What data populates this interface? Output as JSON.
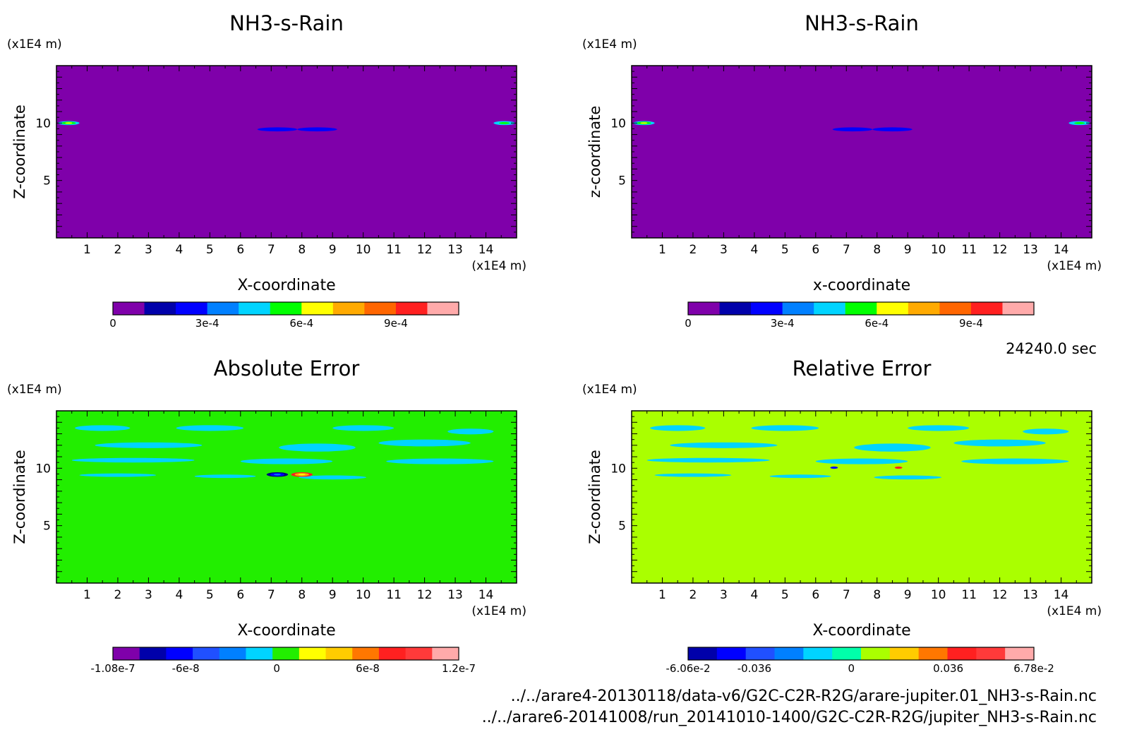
{
  "figure": {
    "time_label": "24240.0 sec",
    "files": [
      "../../arare4-20130118/data-v6/G2C-C2R-R2G/arare-jupiter.01_NH3-s-Rain.nc",
      "../../arare6-20141008/run_20141010-1400/G2C-C2R-R2G/jupiter_NH3-s-Rain.nc"
    ]
  },
  "chart_data": [
    {
      "type": "heatmap",
      "title": "NH3-s-Rain",
      "xlabel": "X-coordinate",
      "ylabel": "Z-coordinate",
      "x_unit": "(x1E4 m)",
      "y_unit": "(x1E4 m)",
      "xlim": [
        0,
        15
      ],
      "ylim": [
        0,
        15
      ],
      "x_ticks": [
        "1",
        "2",
        "3",
        "4",
        "5",
        "6",
        "7",
        "8",
        "9",
        "10",
        "11",
        "12",
        "13",
        "14"
      ],
      "y_ticks": [
        "5",
        "10"
      ],
      "background_color": "#7f00aa",
      "features": [
        {
          "x": 0.4,
          "z": 10.0,
          "width": 0.7,
          "height": 0.35,
          "colors": [
            "#ffff00",
            "#00ff00",
            "#00d4ff"
          ]
        },
        {
          "x": 14.6,
          "z": 10.0,
          "width": 0.7,
          "height": 0.35,
          "colors": [
            "#00ff00",
            "#00d4ff"
          ]
        },
        {
          "x": 7.2,
          "z": 9.45,
          "width": 1.3,
          "height": 0.35,
          "colors": [
            "#0000ff"
          ]
        },
        {
          "x": 8.5,
          "z": 9.45,
          "width": 1.3,
          "height": 0.35,
          "colors": [
            "#0000ff"
          ]
        }
      ],
      "colorbar": {
        "colors": [
          "#7f00aa",
          "#0000aa",
          "#0000ff",
          "#0080ff",
          "#00d4ff",
          "#00ff00",
          "#ffff00",
          "#ffaa00",
          "#ff6600",
          "#ff2020",
          "#ffaaaa"
        ],
        "tick_labels": [
          {
            "label": "0",
            "value": 0
          },
          {
            "label": "3e-4",
            "value": 0.0003
          },
          {
            "label": "6e-4",
            "value": 0.0006
          },
          {
            "label": "9e-4",
            "value": 0.0009
          }
        ],
        "range": [
          0,
          0.0011
        ]
      }
    },
    {
      "type": "heatmap",
      "title": "NH3-s-Rain",
      "xlabel": "x-coordinate",
      "ylabel": "z-coordinate",
      "x_unit": "(x1E4 m)",
      "y_unit": "(x1E4 m)",
      "xlim": [
        0,
        15
      ],
      "ylim": [
        0,
        15
      ],
      "x_ticks": [
        "1",
        "2",
        "3",
        "4",
        "5",
        "6",
        "7",
        "8",
        "9",
        "10",
        "11",
        "12",
        "13",
        "14"
      ],
      "y_ticks": [
        "5",
        "10"
      ],
      "background_color": "#7f00aa",
      "features": [
        {
          "x": 0.4,
          "z": 10.0,
          "width": 0.7,
          "height": 0.35,
          "colors": [
            "#ffff00",
            "#00ff00",
            "#00d4ff"
          ]
        },
        {
          "x": 14.6,
          "z": 10.0,
          "width": 0.7,
          "height": 0.35,
          "colors": [
            "#00ff00",
            "#00d4ff"
          ]
        },
        {
          "x": 7.2,
          "z": 9.45,
          "width": 1.3,
          "height": 0.35,
          "colors": [
            "#0000ff"
          ]
        },
        {
          "x": 8.5,
          "z": 9.45,
          "width": 1.3,
          "height": 0.35,
          "colors": [
            "#0000ff"
          ]
        }
      ],
      "colorbar": {
        "colors": [
          "#7f00aa",
          "#0000aa",
          "#0000ff",
          "#0080ff",
          "#00d4ff",
          "#00ff00",
          "#ffff00",
          "#ffaa00",
          "#ff6600",
          "#ff2020",
          "#ffaaaa"
        ],
        "tick_labels": [
          {
            "label": "0",
            "value": 0
          },
          {
            "label": "3e-4",
            "value": 0.0003
          },
          {
            "label": "6e-4",
            "value": 0.0006
          },
          {
            "label": "9e-4",
            "value": 0.0009
          }
        ],
        "range": [
          0,
          0.0011
        ]
      }
    },
    {
      "type": "heatmap",
      "title": "Absolute Error",
      "xlabel": "X-coordinate",
      "ylabel": "Z-coordinate",
      "x_unit": "(x1E4 m)",
      "y_unit": "(x1E4 m)",
      "xlim": [
        0,
        15
      ],
      "ylim": [
        0,
        15
      ],
      "x_ticks": [
        "1",
        "2",
        "3",
        "4",
        "5",
        "6",
        "7",
        "8",
        "9",
        "10",
        "11",
        "12",
        "13",
        "14"
      ],
      "y_ticks": [
        "5",
        "10"
      ],
      "background_color": "#22ee00",
      "features": [
        {
          "x": 1.5,
          "z": 13.5,
          "width": 1.8,
          "height": 0.5,
          "colors": [
            "#00d4ff"
          ]
        },
        {
          "x": 5.0,
          "z": 13.5,
          "width": 2.2,
          "height": 0.5,
          "colors": [
            "#00d4ff"
          ]
        },
        {
          "x": 10.0,
          "z": 13.5,
          "width": 2.0,
          "height": 0.5,
          "colors": [
            "#00d4ff"
          ]
        },
        {
          "x": 13.5,
          "z": 13.2,
          "width": 1.5,
          "height": 0.5,
          "colors": [
            "#00d4ff"
          ]
        },
        {
          "x": 3.0,
          "z": 12.0,
          "width": 3.5,
          "height": 0.5,
          "colors": [
            "#00d4ff"
          ]
        },
        {
          "x": 8.5,
          "z": 11.8,
          "width": 2.5,
          "height": 0.7,
          "colors": [
            "#00d4ff"
          ]
        },
        {
          "x": 12.0,
          "z": 12.2,
          "width": 3.0,
          "height": 0.6,
          "colors": [
            "#00d4ff"
          ]
        },
        {
          "x": 2.5,
          "z": 10.7,
          "width": 4.0,
          "height": 0.4,
          "colors": [
            "#00d4ff"
          ]
        },
        {
          "x": 7.5,
          "z": 10.6,
          "width": 3.0,
          "height": 0.5,
          "colors": [
            "#00d4ff"
          ]
        },
        {
          "x": 12.5,
          "z": 10.6,
          "width": 3.5,
          "height": 0.5,
          "colors": [
            "#00d4ff"
          ]
        },
        {
          "x": 2.0,
          "z": 9.4,
          "width": 2.5,
          "height": 0.3,
          "colors": [
            "#00d4ff"
          ]
        },
        {
          "x": 5.5,
          "z": 9.3,
          "width": 2.0,
          "height": 0.3,
          "colors": [
            "#00d4ff"
          ]
        },
        {
          "x": 9.0,
          "z": 9.2,
          "width": 2.2,
          "height": 0.35,
          "colors": [
            "#00d4ff"
          ]
        },
        {
          "x": 7.2,
          "z": 9.45,
          "width": 0.7,
          "height": 0.4,
          "colors": [
            "#0080ff",
            "#0000ff",
            "#000080"
          ]
        },
        {
          "x": 8.0,
          "z": 9.45,
          "width": 0.7,
          "height": 0.4,
          "colors": [
            "#ffff00",
            "#ffaa00",
            "#ff2020"
          ]
        }
      ],
      "colorbar": {
        "colors": [
          "#7f00aa",
          "#0000aa",
          "#0000ff",
          "#2050ff",
          "#0080ff",
          "#00d4ff",
          "#22ee00",
          "#ffff00",
          "#ffcc00",
          "#ff7700",
          "#ff2020",
          "#ff3a3a",
          "#ffaaaa"
        ],
        "tick_labels": [
          {
            "label": "-1.08e-7",
            "value": -1.08e-07
          },
          {
            "label": "-6e-8",
            "value": -6e-08
          },
          {
            "label": "0",
            "value": 0
          },
          {
            "label": "6e-8",
            "value": 6e-08
          },
          {
            "label": "1.2e-7",
            "value": 1.2e-07
          }
        ],
        "range": [
          -1.08e-07,
          1.2e-07
        ]
      }
    },
    {
      "type": "heatmap",
      "title": "Relative Error",
      "xlabel": "X-coordinate",
      "ylabel": "Z-coordinate",
      "x_unit": "(x1E4 m)",
      "y_unit": "(x1E4 m)",
      "xlim": [
        0,
        15
      ],
      "ylim": [
        0,
        15
      ],
      "x_ticks": [
        "1",
        "2",
        "3",
        "4",
        "5",
        "6",
        "7",
        "8",
        "9",
        "10",
        "11",
        "12",
        "13",
        "14"
      ],
      "y_ticks": [
        "5",
        "10"
      ],
      "background_color": "#aaff00",
      "features": [
        {
          "x": 1.5,
          "z": 13.5,
          "width": 1.8,
          "height": 0.5,
          "colors": [
            "#00d4ff"
          ]
        },
        {
          "x": 5.0,
          "z": 13.5,
          "width": 2.2,
          "height": 0.5,
          "colors": [
            "#00d4ff"
          ]
        },
        {
          "x": 10.0,
          "z": 13.5,
          "width": 2.0,
          "height": 0.5,
          "colors": [
            "#00d4ff"
          ]
        },
        {
          "x": 13.5,
          "z": 13.2,
          "width": 1.5,
          "height": 0.5,
          "colors": [
            "#00d4ff"
          ]
        },
        {
          "x": 3.0,
          "z": 12.0,
          "width": 3.5,
          "height": 0.5,
          "colors": [
            "#00d4ff"
          ]
        },
        {
          "x": 8.5,
          "z": 11.8,
          "width": 2.5,
          "height": 0.7,
          "colors": [
            "#00d4ff"
          ]
        },
        {
          "x": 12.0,
          "z": 12.2,
          "width": 3.0,
          "height": 0.6,
          "colors": [
            "#00d4ff"
          ]
        },
        {
          "x": 2.5,
          "z": 10.7,
          "width": 4.0,
          "height": 0.4,
          "colors": [
            "#00d4ff"
          ]
        },
        {
          "x": 7.5,
          "z": 10.6,
          "width": 3.0,
          "height": 0.5,
          "colors": [
            "#00d4ff"
          ]
        },
        {
          "x": 12.5,
          "z": 10.6,
          "width": 3.5,
          "height": 0.5,
          "colors": [
            "#00d4ff"
          ]
        },
        {
          "x": 2.0,
          "z": 9.4,
          "width": 2.5,
          "height": 0.3,
          "colors": [
            "#00d4ff"
          ]
        },
        {
          "x": 5.5,
          "z": 9.3,
          "width": 2.0,
          "height": 0.3,
          "colors": [
            "#00d4ff"
          ]
        },
        {
          "x": 9.0,
          "z": 9.2,
          "width": 2.2,
          "height": 0.35,
          "colors": [
            "#00d4ff"
          ]
        },
        {
          "x": 6.6,
          "z": 10.05,
          "width": 0.25,
          "height": 0.2,
          "colors": [
            "#0000ff"
          ]
        },
        {
          "x": 8.7,
          "z": 10.05,
          "width": 0.25,
          "height": 0.2,
          "colors": [
            "#ff2020"
          ]
        }
      ],
      "colorbar": {
        "colors": [
          "#0000aa",
          "#0000ff",
          "#2050ff",
          "#0080ff",
          "#00d4ff",
          "#00ffaa",
          "#aaff00",
          "#ffcc00",
          "#ff7700",
          "#ff2020",
          "#ff3a3a",
          "#ffaaaa"
        ],
        "tick_labels": [
          {
            "label": "-6.06e-2",
            "value": -0.0606
          },
          {
            "label": "-0.036",
            "value": -0.036
          },
          {
            "label": "0",
            "value": 0
          },
          {
            "label": "0.036",
            "value": 0.036
          },
          {
            "label": "6.78e-2",
            "value": 0.0678
          }
        ],
        "range": [
          -0.0606,
          0.0678
        ]
      }
    }
  ]
}
